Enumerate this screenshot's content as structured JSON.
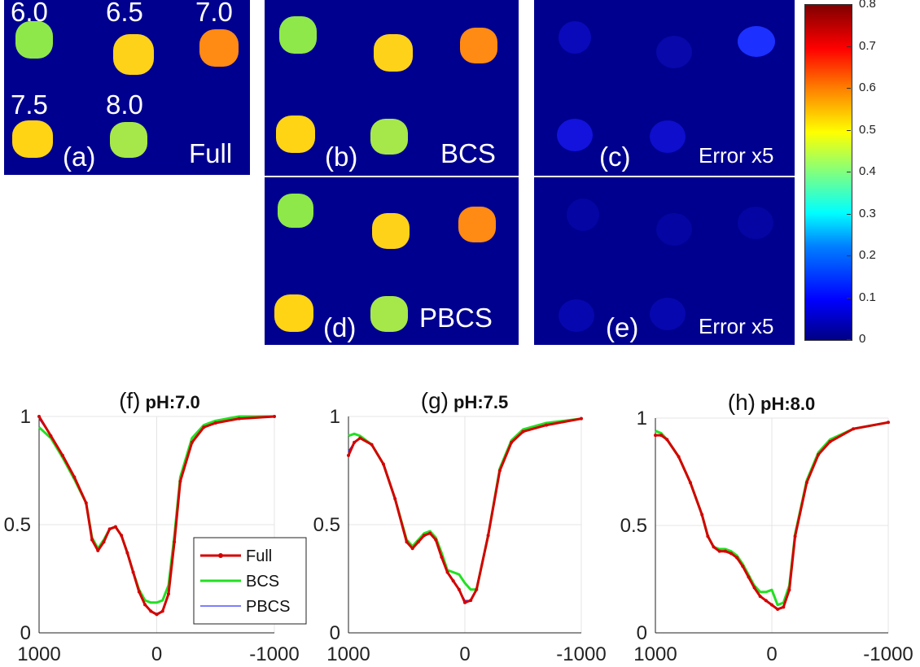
{
  "colorbar": {
    "ticks": [
      "0.8",
      "0.7",
      "0.6",
      "0.5",
      "0.4",
      "0.3",
      "0.2",
      "0.1",
      "0"
    ],
    "range": [
      0,
      0.8
    ]
  },
  "panels": {
    "a": {
      "tag": "(a)",
      "caption": "Full",
      "ph_labels": [
        "6.0",
        "6.5",
        "7.0",
        "7.5",
        "8.0"
      ]
    },
    "b": {
      "tag": "(b)",
      "caption": "BCS"
    },
    "c": {
      "tag": "(c)",
      "caption": "Error x5"
    },
    "d": {
      "tag": "(d)",
      "caption": "PBCS"
    },
    "e": {
      "tag": "(e)",
      "caption": "Error x5"
    }
  },
  "colors": {
    "background": "#00008f",
    "full": "#d40000",
    "bcs": "#22e022",
    "pbcs": "#3030ff"
  },
  "chart_data": [
    {
      "type": "line",
      "tag": "(f)",
      "title": "pH:7.0",
      "x_ticks": [
        "1000",
        "0",
        "-1000"
      ],
      "y_ticks": [
        "1",
        "0.5",
        "0"
      ],
      "xlim": [
        1000,
        -1000
      ],
      "ylim": [
        0,
        1
      ],
      "grid": true,
      "legend": {
        "entries": [
          "Full",
          "BCS",
          "PBCS"
        ],
        "placement": "bottom-right"
      },
      "series": [
        {
          "name": "Full",
          "x": [
            1000,
            900,
            800,
            700,
            600,
            550,
            500,
            450,
            400,
            350,
            300,
            250,
            200,
            150,
            100,
            50,
            0,
            -50,
            -100,
            -150,
            -200,
            -300,
            -400,
            -500,
            -700,
            -1000
          ],
          "y": [
            1.0,
            0.91,
            0.82,
            0.72,
            0.6,
            0.43,
            0.38,
            0.42,
            0.48,
            0.49,
            0.45,
            0.37,
            0.28,
            0.19,
            0.13,
            0.1,
            0.085,
            0.1,
            0.18,
            0.42,
            0.7,
            0.88,
            0.95,
            0.97,
            0.99,
            1.0
          ]
        },
        {
          "name": "BCS",
          "x": [
            1000,
            900,
            800,
            700,
            600,
            550,
            500,
            450,
            400,
            350,
            300,
            250,
            200,
            150,
            100,
            50,
            0,
            -50,
            -100,
            -150,
            -200,
            -300,
            -400,
            -500,
            -700,
            -1000
          ],
          "y": [
            0.95,
            0.9,
            0.81,
            0.71,
            0.6,
            0.44,
            0.39,
            0.43,
            0.48,
            0.49,
            0.45,
            0.37,
            0.28,
            0.2,
            0.15,
            0.14,
            0.14,
            0.15,
            0.22,
            0.45,
            0.72,
            0.9,
            0.96,
            0.98,
            1.0,
            1.0
          ]
        },
        {
          "name": "PBCS",
          "x": [
            1000,
            900,
            800,
            700,
            600,
            550,
            500,
            450,
            400,
            350,
            300,
            250,
            200,
            150,
            100,
            50,
            0,
            -50,
            -100,
            -150,
            -200,
            -300,
            -400,
            -500,
            -700,
            -1000
          ],
          "y": [
            0.99,
            0.91,
            0.82,
            0.72,
            0.6,
            0.43,
            0.38,
            0.42,
            0.48,
            0.49,
            0.45,
            0.37,
            0.28,
            0.19,
            0.13,
            0.1,
            0.09,
            0.1,
            0.18,
            0.42,
            0.7,
            0.88,
            0.95,
            0.97,
            0.99,
            1.0
          ]
        }
      ]
    },
    {
      "type": "line",
      "tag": "(g)",
      "title": "pH:7.5",
      "x_ticks": [
        "1000",
        "0",
        "-1000"
      ],
      "y_ticks": [
        "1",
        "0.5",
        "0"
      ],
      "xlim": [
        1000,
        -1000
      ],
      "ylim": [
        0,
        1
      ],
      "grid": true,
      "series": [
        {
          "name": "Full",
          "x": [
            1000,
            950,
            900,
            800,
            700,
            600,
            500,
            450,
            400,
            350,
            300,
            250,
            200,
            150,
            100,
            50,
            0,
            -50,
            -100,
            -200,
            -300,
            -400,
            -500,
            -700,
            -1000
          ],
          "y": [
            0.82,
            0.88,
            0.9,
            0.87,
            0.78,
            0.62,
            0.42,
            0.39,
            0.42,
            0.45,
            0.46,
            0.43,
            0.35,
            0.28,
            0.24,
            0.2,
            0.14,
            0.15,
            0.2,
            0.45,
            0.75,
            0.88,
            0.93,
            0.96,
            0.99
          ]
        },
        {
          "name": "BCS",
          "x": [
            1000,
            950,
            900,
            800,
            700,
            600,
            500,
            450,
            400,
            350,
            300,
            250,
            200,
            150,
            100,
            50,
            0,
            -50,
            -100,
            -200,
            -300,
            -400,
            -500,
            -700,
            -1000
          ],
          "y": [
            0.91,
            0.92,
            0.91,
            0.87,
            0.78,
            0.62,
            0.43,
            0.4,
            0.43,
            0.46,
            0.47,
            0.44,
            0.37,
            0.29,
            0.28,
            0.27,
            0.23,
            0.2,
            0.2,
            0.45,
            0.76,
            0.89,
            0.94,
            0.97,
            0.99
          ]
        },
        {
          "name": "PBCS",
          "x": [
            1000,
            950,
            900,
            800,
            700,
            600,
            500,
            450,
            400,
            350,
            300,
            250,
            200,
            150,
            100,
            50,
            0,
            -50,
            -100,
            -200,
            -300,
            -400,
            -500,
            -700,
            -1000
          ],
          "y": [
            0.84,
            0.88,
            0.9,
            0.87,
            0.78,
            0.62,
            0.42,
            0.39,
            0.42,
            0.45,
            0.46,
            0.43,
            0.35,
            0.28,
            0.24,
            0.2,
            0.15,
            0.15,
            0.2,
            0.45,
            0.75,
            0.88,
            0.93,
            0.96,
            0.99
          ]
        }
      ]
    },
    {
      "type": "line",
      "tag": "(h)",
      "title": "pH:8.0",
      "x_ticks": [
        "1000",
        "0",
        "-1000"
      ],
      "y_ticks": [
        "1",
        "0.5",
        "0"
      ],
      "xlim": [
        1000,
        -1000
      ],
      "ylim": [
        0,
        1
      ],
      "grid": true,
      "series": [
        {
          "name": "Full",
          "x": [
            1000,
            950,
            900,
            800,
            700,
            600,
            550,
            500,
            450,
            400,
            350,
            300,
            250,
            200,
            150,
            100,
            50,
            0,
            -50,
            -100,
            -150,
            -200,
            -300,
            -400,
            -500,
            -700,
            -1000
          ],
          "y": [
            0.92,
            0.92,
            0.9,
            0.82,
            0.7,
            0.55,
            0.45,
            0.4,
            0.38,
            0.38,
            0.37,
            0.35,
            0.31,
            0.26,
            0.21,
            0.17,
            0.15,
            0.13,
            0.11,
            0.12,
            0.2,
            0.45,
            0.7,
            0.83,
            0.89,
            0.95,
            0.98
          ]
        },
        {
          "name": "BCS",
          "x": [
            1000,
            950,
            900,
            800,
            700,
            600,
            550,
            500,
            450,
            400,
            350,
            300,
            250,
            200,
            150,
            100,
            50,
            0,
            -50,
            -100,
            -150,
            -200,
            -300,
            -400,
            -500,
            -700,
            -1000
          ],
          "y": [
            0.94,
            0.93,
            0.9,
            0.82,
            0.7,
            0.55,
            0.45,
            0.4,
            0.39,
            0.39,
            0.38,
            0.36,
            0.32,
            0.27,
            0.22,
            0.19,
            0.19,
            0.2,
            0.13,
            0.14,
            0.22,
            0.46,
            0.71,
            0.84,
            0.9,
            0.95,
            0.98
          ]
        },
        {
          "name": "PBCS",
          "x": [
            1000,
            950,
            900,
            800,
            700,
            600,
            550,
            500,
            450,
            400,
            350,
            300,
            250,
            200,
            150,
            100,
            50,
            0,
            -50,
            -100,
            -150,
            -200,
            -300,
            -400,
            -500,
            -700,
            -1000
          ],
          "y": [
            0.92,
            0.92,
            0.9,
            0.82,
            0.7,
            0.55,
            0.45,
            0.4,
            0.38,
            0.38,
            0.37,
            0.35,
            0.31,
            0.26,
            0.21,
            0.17,
            0.15,
            0.13,
            0.11,
            0.12,
            0.2,
            0.45,
            0.7,
            0.83,
            0.89,
            0.95,
            0.98
          ]
        }
      ]
    }
  ]
}
